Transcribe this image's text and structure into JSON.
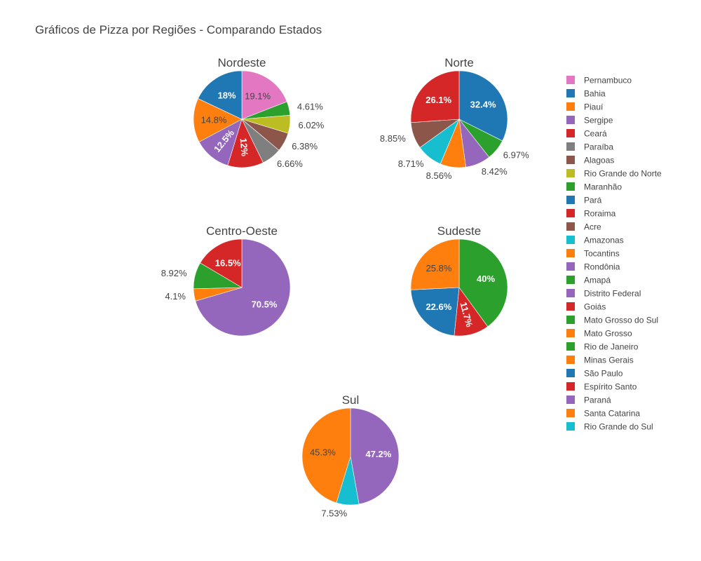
{
  "title": "Gráficos de Pizza por Regiões - Comparando Estados",
  "chart_data": [
    {
      "type": "pie",
      "title": "Nordeste",
      "slices": [
        {
          "label": "Pernambuco",
          "value": 19.1,
          "color": "#e377c2"
        },
        {
          "label": "Maranhão",
          "value": 4.61,
          "color": "#2ca02c"
        },
        {
          "label": "Rio Grande do Norte",
          "value": 6.02,
          "color": "#bcbd22"
        },
        {
          "label": "Alagoas",
          "value": 6.38,
          "color": "#8c564b"
        },
        {
          "label": "Paraíba",
          "value": 6.66,
          "color": "#7f7f7f"
        },
        {
          "label": "Ceará",
          "value": 12.0,
          "text": "12%",
          "color": "#d62728"
        },
        {
          "label": "Sergipe",
          "value": 12.5,
          "color": "#9467bd"
        },
        {
          "label": "Piauí",
          "value": 14.8,
          "color": "#ff7f0e"
        },
        {
          "label": "Bahia",
          "value": 18.0,
          "text": "18%",
          "color": "#1f77b4"
        }
      ]
    },
    {
      "type": "pie",
      "title": "Norte",
      "slices": [
        {
          "label": "Pará",
          "value": 32.4,
          "color": "#1f77b4"
        },
        {
          "label": "Amapá",
          "value": 6.97,
          "color": "#2ca02c"
        },
        {
          "label": "Rondônia",
          "value": 8.42,
          "color": "#9467bd"
        },
        {
          "label": "Tocantins",
          "value": 8.56,
          "color": "#ff7f0e"
        },
        {
          "label": "Amazonas",
          "value": 8.71,
          "color": "#17becf"
        },
        {
          "label": "Acre",
          "value": 8.85,
          "color": "#8c564b"
        },
        {
          "label": "Roraima",
          "value": 26.1,
          "color": "#d62728"
        }
      ]
    },
    {
      "type": "pie",
      "title": "Centro-Oeste",
      "slices": [
        {
          "label": "Distrito Federal",
          "value": 70.5,
          "color": "#9467bd"
        },
        {
          "label": "Mato Grosso",
          "value": 4.1,
          "color": "#ff7f0e"
        },
        {
          "label": "Mato Grosso do Sul",
          "value": 8.92,
          "color": "#2ca02c"
        },
        {
          "label": "Goiás",
          "value": 16.5,
          "color": "#d62728"
        }
      ]
    },
    {
      "type": "pie",
      "title": "Sudeste",
      "slices": [
        {
          "label": "Rio de Janeiro",
          "value": 40.0,
          "text": "40%",
          "color": "#2ca02c"
        },
        {
          "label": "Espírito Santo",
          "value": 11.7,
          "color": "#d62728"
        },
        {
          "label": "São Paulo",
          "value": 22.6,
          "color": "#1f77b4"
        },
        {
          "label": "Minas Gerais",
          "value": 25.8,
          "color": "#ff7f0e"
        }
      ]
    },
    {
      "type": "pie",
      "title": "Sul",
      "slices": [
        {
          "label": "Paraná",
          "value": 47.2,
          "color": "#9467bd"
        },
        {
          "label": "Rio Grande do Sul",
          "value": 7.53,
          "color": "#17becf"
        },
        {
          "label": "Santa Catarina",
          "value": 45.3,
          "color": "#ff7f0e"
        }
      ]
    }
  ],
  "legend": [
    {
      "label": "Pernambuco",
      "color": "#e377c2"
    },
    {
      "label": "Bahia",
      "color": "#1f77b4"
    },
    {
      "label": "Piauí",
      "color": "#ff7f0e"
    },
    {
      "label": "Sergipe",
      "color": "#9467bd"
    },
    {
      "label": "Ceará",
      "color": "#d62728"
    },
    {
      "label": "Paraíba",
      "color": "#7f7f7f"
    },
    {
      "label": "Alagoas",
      "color": "#8c564b"
    },
    {
      "label": "Rio Grande do Norte",
      "color": "#bcbd22"
    },
    {
      "label": "Maranhão",
      "color": "#2ca02c"
    },
    {
      "label": "Pará",
      "color": "#1f77b4"
    },
    {
      "label": "Roraima",
      "color": "#d62728"
    },
    {
      "label": "Acre",
      "color": "#8c564b"
    },
    {
      "label": "Amazonas",
      "color": "#17becf"
    },
    {
      "label": "Tocantins",
      "color": "#ff7f0e"
    },
    {
      "label": "Rondônia",
      "color": "#9467bd"
    },
    {
      "label": "Amapá",
      "color": "#2ca02c"
    },
    {
      "label": "Distrito Federal",
      "color": "#9467bd"
    },
    {
      "label": "Goiás",
      "color": "#d62728"
    },
    {
      "label": "Mato Grosso do Sul",
      "color": "#2ca02c"
    },
    {
      "label": "Mato Grosso",
      "color": "#ff7f0e"
    },
    {
      "label": "Rio de Janeiro",
      "color": "#2ca02c"
    },
    {
      "label": "Minas Gerais",
      "color": "#ff7f0e"
    },
    {
      "label": "São Paulo",
      "color": "#1f77b4"
    },
    {
      "label": "Espírito Santo",
      "color": "#d62728"
    },
    {
      "label": "Paraná",
      "color": "#9467bd"
    },
    {
      "label": "Santa Catarina",
      "color": "#ff7f0e"
    },
    {
      "label": "Rio Grande do Sul",
      "color": "#17becf"
    }
  ]
}
